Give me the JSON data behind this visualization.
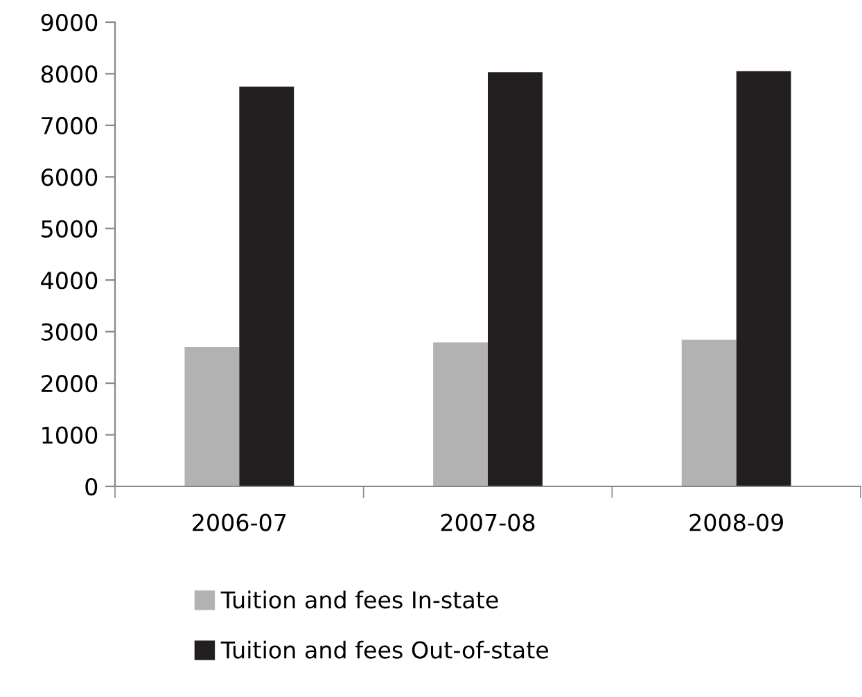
{
  "chart_data": {
    "type": "bar",
    "categories": [
      "2006-07",
      "2007-08",
      "2008-09"
    ],
    "series": [
      {
        "name": "Tuition and fees In-state",
        "color": "#b2b2b2",
        "values": [
          2700,
          2790,
          2840
        ]
      },
      {
        "name": "Tuition and fees Out-of-state",
        "color": "#231f20",
        "values": [
          7750,
          8030,
          8050
        ]
      }
    ],
    "ylim": [
      0,
      9000
    ],
    "yticks": [
      0,
      1000,
      2000,
      3000,
      4000,
      5000,
      6000,
      7000,
      8000,
      9000
    ],
    "grid": false,
    "legend": "bottom"
  }
}
